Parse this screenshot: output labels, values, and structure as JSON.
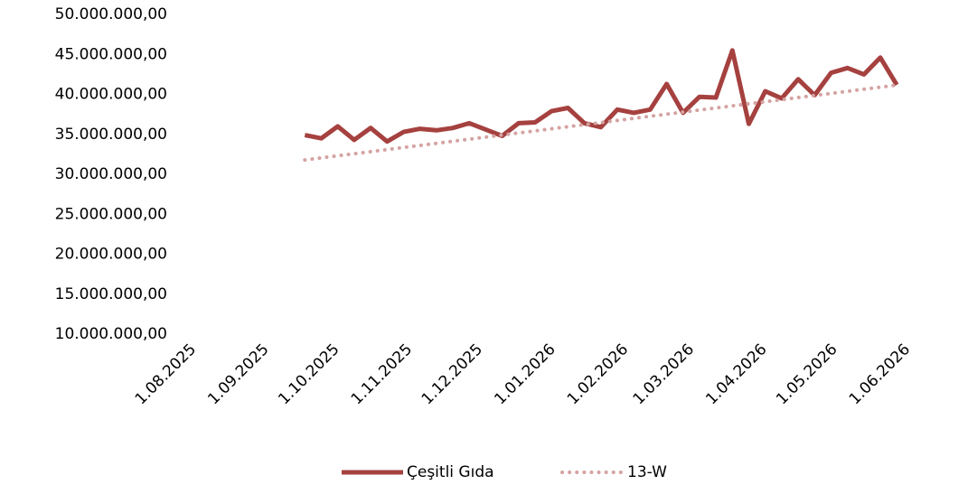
{
  "chart_data": {
    "type": "line",
    "x": [
      "2025-09-19",
      "2025-09-26",
      "2025-10-03",
      "2025-10-10",
      "2025-10-17",
      "2025-10-24",
      "2025-10-31",
      "2025-11-07",
      "2025-11-14",
      "2025-11-21",
      "2025-11-28",
      "2025-12-05",
      "2025-12-12",
      "2025-12-19",
      "2025-12-26",
      "2026-01-02",
      "2026-01-09",
      "2026-01-16",
      "2026-01-23",
      "2026-01-30",
      "2026-02-06",
      "2026-02-13",
      "2026-02-20",
      "2026-02-27",
      "2026-03-06",
      "2026-03-13",
      "2026-03-20",
      "2026-03-27",
      "2026-04-03",
      "2026-04-10",
      "2026-04-17",
      "2026-04-24",
      "2026-05-01",
      "2026-05-08",
      "2026-05-15",
      "2026-05-22",
      "2026-05-29"
    ],
    "series": [
      {
        "name": "Çeşitli Gıda",
        "color": "#a5413f",
        "style": "solid",
        "values": [
          34900000,
          34500000,
          36000000,
          34300000,
          35800000,
          34100000,
          35300000,
          35700000,
          35500000,
          35800000,
          36400000,
          35600000,
          34800000,
          36400000,
          36500000,
          37900000,
          38300000,
          36400000,
          35900000,
          38100000,
          37700000,
          38100000,
          41300000,
          37700000,
          39700000,
          39600000,
          45500000,
          36300000,
          40400000,
          39500000,
          41900000,
          39900000,
          42700000,
          43300000,
          42500000,
          44600000,
          41200000
        ]
      },
      {
        "name": "13-W",
        "color": "#d4a3a2",
        "style": "dotted",
        "values": [
          31800000,
          32060000,
          32320000,
          32580000,
          32840000,
          33100000,
          33360000,
          33620000,
          33880000,
          34140000,
          34400000,
          34660000,
          34920000,
          35180000,
          35440000,
          35700000,
          35960000,
          36220000,
          36480000,
          36740000,
          37000000,
          37260000,
          37520000,
          37780000,
          38040000,
          38300000,
          38560000,
          38820000,
          39080000,
          39340000,
          39600000,
          39860000,
          40120000,
          40380000,
          40640000,
          40900000,
          41160000
        ]
      }
    ],
    "xlim": [
      "2025-08-01",
      "2026-06-26"
    ],
    "xticks": [
      {
        "value": "2025-08-01",
        "label": "1.08.2025"
      },
      {
        "value": "2025-09-01",
        "label": "1.09.2025"
      },
      {
        "value": "2025-10-01",
        "label": "1.10.2025"
      },
      {
        "value": "2025-11-01",
        "label": "1.11.2025"
      },
      {
        "value": "2025-12-01",
        "label": "1.12.2025"
      },
      {
        "value": "2026-01-01",
        "label": "1.01.2026"
      },
      {
        "value": "2026-02-01",
        "label": "1.02.2026"
      },
      {
        "value": "2026-03-01",
        "label": "1.03.2026"
      },
      {
        "value": "2026-04-01",
        "label": "1.04.2026"
      },
      {
        "value": "2026-05-01",
        "label": "1.05.2026"
      },
      {
        "value": "2026-06-01",
        "label": "1.06.2026"
      }
    ],
    "ylim": [
      10000000,
      50000000
    ],
    "yticks": [
      {
        "value": 10000000,
        "label": "10.000.000,00"
      },
      {
        "value": 15000000,
        "label": "15.000.000,00"
      },
      {
        "value": 20000000,
        "label": "20.000.000,00"
      },
      {
        "value": 25000000,
        "label": "25.000.000,00"
      },
      {
        "value": 30000000,
        "label": "30.000.000,00"
      },
      {
        "value": 35000000,
        "label": "35.000.000,00"
      },
      {
        "value": 40000000,
        "label": "40.000.000,00"
      },
      {
        "value": 45000000,
        "label": "45.000.000,00"
      },
      {
        "value": 50000000,
        "label": "50.000.000,00"
      }
    ],
    "grid": false,
    "legend": "bottom"
  }
}
